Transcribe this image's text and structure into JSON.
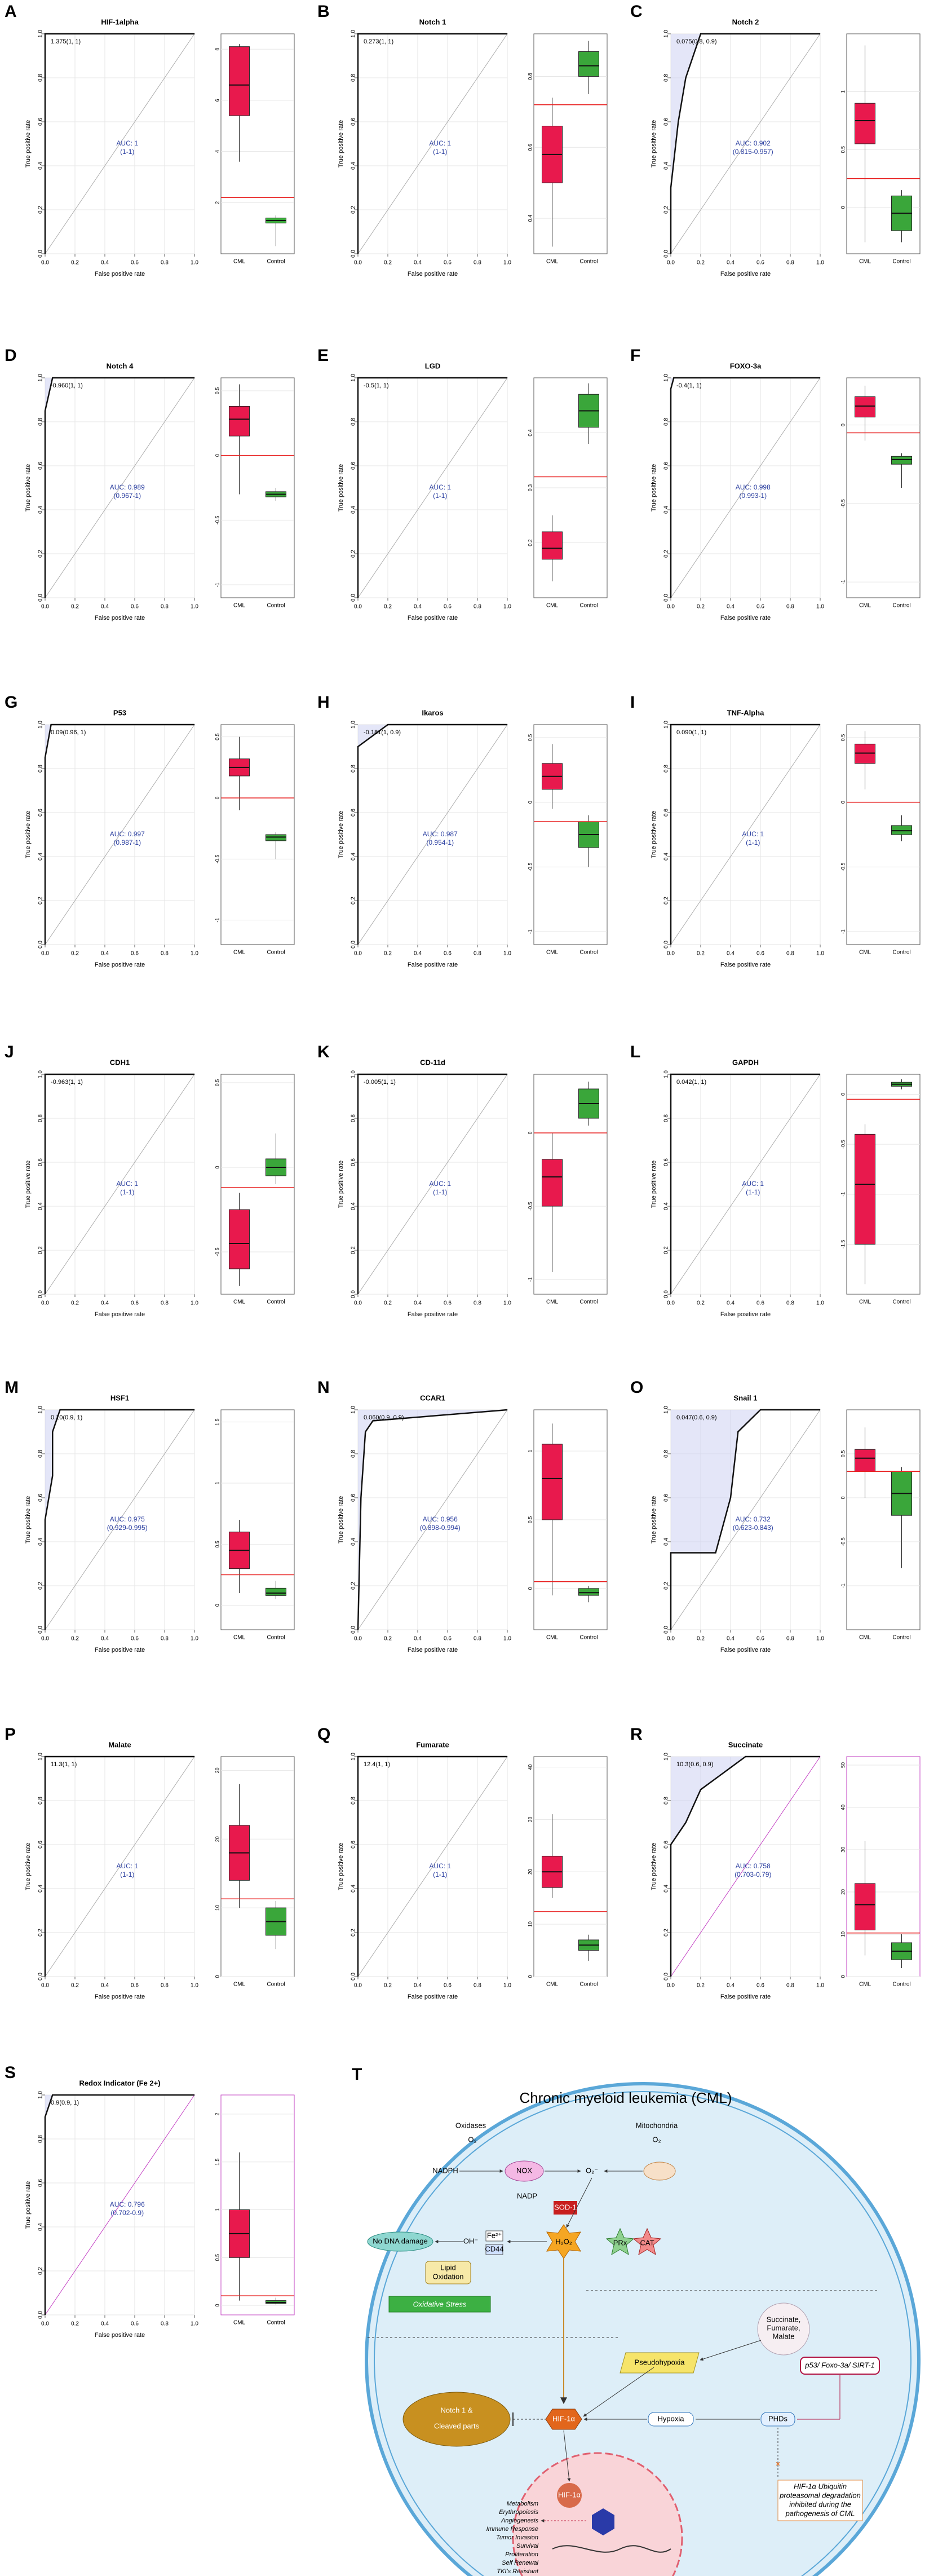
{
  "shared": {
    "roc": {
      "xlabel": "False positive rate",
      "ylabel": "True positive rate",
      "xlim": [
        0,
        1
      ],
      "ylim": [
        0,
        1
      ],
      "xticks": [
        {
          "value": 0,
          "label": "0.0"
        },
        {
          "value": 0.2,
          "label": "0.2"
        },
        {
          "value": 0.4,
          "label": "0.4"
        },
        {
          "value": 0.6,
          "label": "0.6"
        },
        {
          "value": 0.8,
          "label": "0.8"
        },
        {
          "value": 1,
          "label": "1.0"
        }
      ],
      "yticks": [
        {
          "value": 0,
          "label": "0.0"
        },
        {
          "value": 0.2,
          "label": "0.2"
        },
        {
          "value": 0.4,
          "label": "0.4"
        },
        {
          "value": 0.6,
          "label": "0.6"
        },
        {
          "value": 0.8,
          "label": "0.8"
        },
        {
          "value": 1,
          "label": "1.0"
        }
      ]
    },
    "box_groups": [
      {
        "name": "CML",
        "color": "#e8194d"
      },
      {
        "name": "Control",
        "color": "#3aa63a"
      }
    ],
    "cutoff_color": "#e82020",
    "band_color": "#c9cdf2"
  },
  "chart_data": [
    {
      "type": "roc",
      "label": "A",
      "title": "HIF-1alpha",
      "threshold": "1.375(1, 1)",
      "auc": "AUC: 1",
      "ci": "(1-1)",
      "fpr": [
        0,
        0,
        1
      ],
      "tpr": [
        0,
        1,
        1
      ],
      "box_ylim": [
        0,
        8.6
      ],
      "box_yticks": [
        2,
        4,
        6,
        8
      ],
      "box": [
        [
          3.6,
          5.4,
          6.6,
          8.1,
          8.2
        ],
        [
          0.3,
          1.2,
          1.3,
          1.4,
          1.5
        ]
      ],
      "cutoff": 2.2
    },
    {
      "type": "roc",
      "label": "B",
      "title": "Notch 1",
      "threshold": "0.273(1, 1)",
      "auc": "AUC: 1",
      "ci": "(1-1)",
      "fpr": [
        0,
        0,
        1
      ],
      "tpr": [
        0,
        1,
        1
      ],
      "box_ylim": [
        0.3,
        0.92
      ],
      "box_yticks": [
        0.4,
        0.6,
        0.8
      ],
      "box": [
        [
          0.32,
          0.5,
          0.58,
          0.66,
          0.74
        ],
        [
          0.75,
          0.8,
          0.83,
          0.87,
          0.9
        ]
      ],
      "cutoff": 0.72
    },
    {
      "type": "roc",
      "label": "C",
      "title": "Notch 2",
      "threshold": "0.075(0.8, 0.9)",
      "auc": "AUC: 0.902",
      "ci": "(0.815-0.957)",
      "fpr": [
        0,
        0,
        0.05,
        0.1,
        0.15,
        0.2,
        1
      ],
      "tpr": [
        0,
        0.3,
        0.6,
        0.8,
        0.9,
        1,
        1
      ],
      "box_ylim": [
        -0.4,
        1.5
      ],
      "box_yticks": [
        0,
        0.5,
        1
      ],
      "box": [
        [
          -0.3,
          0.55,
          0.75,
          0.9,
          1.4
        ],
        [
          -0.3,
          -0.2,
          -0.05,
          0.1,
          0.15
        ]
      ],
      "cutoff": 0.25
    },
    {
      "type": "roc",
      "label": "D",
      "title": "Notch 4",
      "threshold": "-0.960(1, 1)",
      "auc": "AUC: 0.989",
      "ci": "(0.967-1)",
      "fpr": [
        0,
        0,
        0.05,
        1
      ],
      "tpr": [
        0,
        0.85,
        1,
        1
      ],
      "box_ylim": [
        -1.1,
        0.6
      ],
      "box_yticks": [
        -1,
        -0.5,
        0,
        0.5
      ],
      "box": [
        [
          -0.3,
          0.15,
          0.28,
          0.38,
          0.55
        ],
        [
          -0.35,
          -0.32,
          -0.3,
          -0.28,
          -0.25
        ]
      ],
      "cutoff": 0
    },
    {
      "type": "roc",
      "label": "E",
      "title": "LGD",
      "threshold": "-0.5(1, 1)",
      "auc": "AUC: 1",
      "ci": "(1-1)",
      "fpr": [
        0,
        0,
        1
      ],
      "tpr": [
        0,
        1,
        1
      ],
      "box_ylim": [
        0.1,
        0.5
      ],
      "box_yticks": [
        0.2,
        0.3,
        0.4
      ],
      "box": [
        [
          0.13,
          0.17,
          0.19,
          0.22,
          0.25
        ],
        [
          0.38,
          0.41,
          0.44,
          0.47,
          0.49
        ]
      ],
      "cutoff": 0.32
    },
    {
      "type": "roc",
      "label": "F",
      "title": "FOXO-3a",
      "threshold": "-0.4(1, 1)",
      "auc": "AUC: 0.998",
      "ci": "(0.993-1)",
      "fpr": [
        0,
        0,
        0.02,
        1
      ],
      "tpr": [
        0,
        0.95,
        1,
        1
      ],
      "box_ylim": [
        -1.1,
        0.3
      ],
      "box_yticks": [
        -1,
        -0.5,
        0
      ],
      "box": [
        [
          -0.1,
          0.05,
          0.12,
          0.18,
          0.25
        ],
        [
          -0.4,
          -0.25,
          -0.22,
          -0.2,
          -0.18
        ]
      ],
      "cutoff": -0.05
    },
    {
      "type": "roc",
      "label": "G",
      "title": "P53",
      "threshold": "0.09(0.96, 1)",
      "auc": "AUC: 0.997",
      "ci": "(0.987-1)",
      "fpr": [
        0,
        0,
        0.04,
        1
      ],
      "tpr": [
        0,
        0.85,
        1,
        1
      ],
      "box_ylim": [
        -1.2,
        0.6
      ],
      "box_yticks": [
        -1,
        -0.5,
        0,
        0.5
      ],
      "box": [
        [
          -0.1,
          0.18,
          0.25,
          0.32,
          0.5
        ],
        [
          -0.5,
          -0.35,
          -0.32,
          -0.3,
          -0.28
        ]
      ],
      "cutoff": 0
    },
    {
      "type": "roc",
      "label": "H",
      "title": "Ikaros",
      "threshold": "-0.181(1, 0.9)",
      "auc": "AUC: 0.987",
      "ci": "(0.954-1)",
      "fpr": [
        0,
        0,
        0.2,
        1
      ],
      "tpr": [
        0,
        0.9,
        1,
        1
      ],
      "box_ylim": [
        -1.1,
        0.6
      ],
      "box_yticks": [
        -1,
        -0.5,
        0,
        0.5
      ],
      "box": [
        [
          -0.05,
          0.1,
          0.2,
          0.3,
          0.45
        ],
        [
          -0.5,
          -0.35,
          -0.25,
          -0.15,
          -0.1
        ]
      ],
      "cutoff": -0.15
    },
    {
      "type": "roc",
      "label": "I",
      "title": "TNF-Alpha",
      "threshold": "0.090(1, 1)",
      "auc": "AUC: 1",
      "ci": "(1-1)",
      "fpr": [
        0,
        0,
        1
      ],
      "tpr": [
        0,
        1,
        1
      ],
      "box_ylim": [
        -1.1,
        0.6
      ],
      "box_yticks": [
        -1,
        -0.5,
        0,
        0.5
      ],
      "box": [
        [
          0.1,
          0.3,
          0.38,
          0.45,
          0.55
        ],
        [
          -0.3,
          -0.25,
          -0.22,
          -0.18,
          -0.1
        ]
      ],
      "cutoff": 0
    },
    {
      "type": "roc",
      "label": "J",
      "title": "CDH1",
      "threshold": "-0.963(1, 1)",
      "auc": "AUC: 1",
      "ci": "(1-1)",
      "fpr": [
        0,
        0,
        1
      ],
      "tpr": [
        0,
        1,
        1
      ],
      "box_ylim": [
        -0.75,
        0.55
      ],
      "box_yticks": [
        -0.5,
        0,
        0.5
      ],
      "box": [
        [
          -0.7,
          -0.6,
          -0.45,
          -0.25,
          -0.15
        ],
        [
          -0.1,
          -0.05,
          0,
          0.05,
          0.2
        ]
      ],
      "cutoff": -0.12
    },
    {
      "type": "roc",
      "label": "K",
      "title": "CD-11d",
      "threshold": "-0.005(1, 1)",
      "auc": "AUC: 1",
      "ci": "(1-1)",
      "fpr": [
        0,
        0,
        1
      ],
      "tpr": [
        0,
        1,
        1
      ],
      "box_ylim": [
        -1.1,
        0.4
      ],
      "box_yticks": [
        -1,
        -0.5,
        0
      ],
      "box": [
        [
          -0.95,
          -0.5,
          -0.3,
          -0.18,
          0
        ],
        [
          0.05,
          0.1,
          0.2,
          0.3,
          0.35
        ]
      ],
      "cutoff": 0
    },
    {
      "type": "roc",
      "label": "L",
      "title": "GAPDH",
      "threshold": "0.042(1, 1)",
      "auc": "AUC: 1",
      "ci": "(1-1)",
      "fpr": [
        0,
        0,
        1
      ],
      "tpr": [
        0,
        1,
        1
      ],
      "box_ylim": [
        -2,
        0.2
      ],
      "box_yticks": [
        -1.5,
        -1,
        -0.5,
        0
      ],
      "box": [
        [
          -1.9,
          -1.5,
          -0.9,
          -0.4,
          -0.3
        ],
        [
          0.05,
          0.08,
          0.1,
          0.12,
          0.15
        ]
      ],
      "cutoff": -0.05
    },
    {
      "type": "roc",
      "label": "M",
      "title": "HSF1",
      "threshold": "0.10(0.9, 1)",
      "auc": "AUC: 0.975",
      "ci": "(0.929-0.995)",
      "fpr": [
        0,
        0,
        0.05,
        0.05,
        0.1,
        1
      ],
      "tpr": [
        0,
        0.5,
        0.7,
        0.9,
        1,
        1
      ],
      "box_ylim": [
        -0.2,
        1.6
      ],
      "box_yticks": [
        0,
        0.5,
        1,
        1.5
      ],
      "box": [
        [
          0.1,
          0.3,
          0.45,
          0.6,
          0.7
        ],
        [
          0.05,
          0.08,
          0.1,
          0.14,
          0.2
        ]
      ],
      "cutoff": 0.25
    },
    {
      "type": "roc",
      "label": "N",
      "title": "CCAR1",
      "threshold": "0.060(0.9, 0.9)",
      "auc": "AUC: 0.956",
      "ci": "(0.898-0.994)",
      "fpr": [
        0,
        0.02,
        0.05,
        0.1,
        1
      ],
      "tpr": [
        0,
        0.6,
        0.9,
        0.95,
        1
      ],
      "box_ylim": [
        -0.3,
        1.3
      ],
      "box_yticks": [
        0,
        0.5,
        1
      ],
      "box": [
        [
          -0.05,
          0.5,
          0.8,
          1.05,
          1.2
        ],
        [
          -0.1,
          -0.05,
          -0.03,
          0,
          0.02
        ]
      ],
      "cutoff": 0.05
    },
    {
      "type": "roc",
      "label": "O",
      "title": "Snail 1",
      "threshold": "0.047(0.6, 0.9)",
      "auc": "AUC: 0.732",
      "ci": "(0.623-0.843)",
      "fpr": [
        0,
        0,
        0.3,
        0.4,
        0.45,
        0.6,
        1
      ],
      "tpr": [
        0,
        0.35,
        0.35,
        0.6,
        0.9,
        1,
        1
      ],
      "box_ylim": [
        -1.5,
        1
      ],
      "box_yticks": [
        -1,
        -0.5,
        0,
        0.5
      ],
      "box": [
        [
          0,
          0.3,
          0.45,
          0.55,
          0.8
        ],
        [
          -0.8,
          -0.2,
          0.05,
          0.3,
          0.35
        ]
      ],
      "cutoff": 0.3
    },
    {
      "type": "roc",
      "label": "P",
      "title": "Malate",
      "threshold": "11.3(1, 1)",
      "auc": "AUC: 1",
      "ci": "(1-1)",
      "fpr": [
        0,
        0,
        1
      ],
      "tpr": [
        0,
        1,
        1
      ],
      "box_ylim": [
        0,
        32
      ],
      "box_yticks": [
        0,
        10,
        20,
        30
      ],
      "box": [
        [
          10,
          14,
          18,
          22,
          28
        ],
        [
          4,
          6,
          8,
          10,
          11
        ]
      ],
      "cutoff": 11.3
    },
    {
      "type": "roc",
      "label": "Q",
      "title": "Fumarate",
      "threshold": "12.4(1, 1)",
      "auc": "AUC: 1",
      "ci": "(1-1)",
      "fpr": [
        0,
        0,
        1
      ],
      "tpr": [
        0,
        1,
        1
      ],
      "box_ylim": [
        0,
        42
      ],
      "box_yticks": [
        0,
        10,
        20,
        30,
        40
      ],
      "box": [
        [
          15,
          17,
          20,
          23,
          31
        ],
        [
          3,
          5,
          6,
          7,
          8
        ]
      ],
      "cutoff": 12.4
    },
    {
      "type": "roc",
      "label": "R",
      "title": "Succinate",
      "threshold": "10.3(0.6, 0.9)",
      "auc": "AUC: 0.758",
      "ci": "(0.703-0.79)",
      "fpr": [
        0,
        0,
        0.1,
        0.2,
        0.3,
        0.5,
        1
      ],
      "tpr": [
        0,
        0.6,
        0.7,
        0.85,
        0.9,
        1,
        1
      ],
      "box_ylim": [
        0,
        52
      ],
      "box_yticks": [
        0,
        10,
        20,
        30,
        40,
        50
      ],
      "box": [
        [
          5,
          11,
          17,
          22,
          32
        ],
        [
          2,
          4,
          6,
          8,
          10
        ]
      ],
      "cutoff": 10.3,
      "frame_color": "#c23cc2"
    },
    {
      "type": "roc",
      "label": "S",
      "title": "Redox Indicator (Fe 2+)",
      "threshold": "0.9(0.9, 1)",
      "auc": "AUC: 0.796",
      "ci": "(0.702-0.9)",
      "fpr": [
        0,
        0,
        0.05,
        1
      ],
      "tpr": [
        0,
        0.9,
        1,
        1
      ],
      "box_ylim": [
        -0.1,
        2.2
      ],
      "box_yticks": [
        0,
        0.5,
        1,
        1.5,
        2
      ],
      "box": [
        [
          0.05,
          0.5,
          0.75,
          1,
          1.6
        ],
        [
          0.01,
          0.02,
          0.03,
          0.05,
          0.08
        ]
      ],
      "cutoff": 0.1,
      "frame_color": "#c23cc2"
    }
  ],
  "diagram": {
    "label": "T",
    "title": "Chronic myeloid leukemia (CML)",
    "oxidases": "Oxidases",
    "o2a": "O₂",
    "mito": "Mitochondria",
    "o2b": "O₂",
    "nadph": "NADPH",
    "nox": "NOX",
    "nadp": "NADP",
    "superoxide": "O₂⁻",
    "sod": "SOD-1",
    "h2o2": "H₂O₂",
    "prx": "PRx",
    "cat": "CAT",
    "dna": "No DNA damage",
    "oh": "OH⁻",
    "fe": "Fe²⁺",
    "cd44": "CD44",
    "lipid": [
      "Lipid",
      "Oxidation"
    ],
    "stress": "Oxidative Stress",
    "tca": [
      "Succinate,",
      "Fumarate,",
      "Malate"
    ],
    "pseudo": "Pseudohypoxia",
    "p53": "p53/ Foxo-3a/ SIRT-1",
    "notch": [
      "Notch 1 &",
      "Cleaved parts"
    ],
    "hif": "HIF-1α",
    "hypoxia": "Hypoxia",
    "phds": "PHDs",
    "degradation": [
      "HIF-1α Ubiquitin",
      "proteasomal degradation",
      "inhibited during the",
      "pathogenesis of CML"
    ],
    "nuclear_hif": "HIF-1α",
    "outcomes": [
      "Metabolism",
      "Erythropoiesis",
      "Angiogenesis",
      "Immune Response",
      "Tumor Invasion",
      "Survival",
      "Proliferation",
      "Self Renewal",
      "TKI's Resistant"
    ]
  }
}
